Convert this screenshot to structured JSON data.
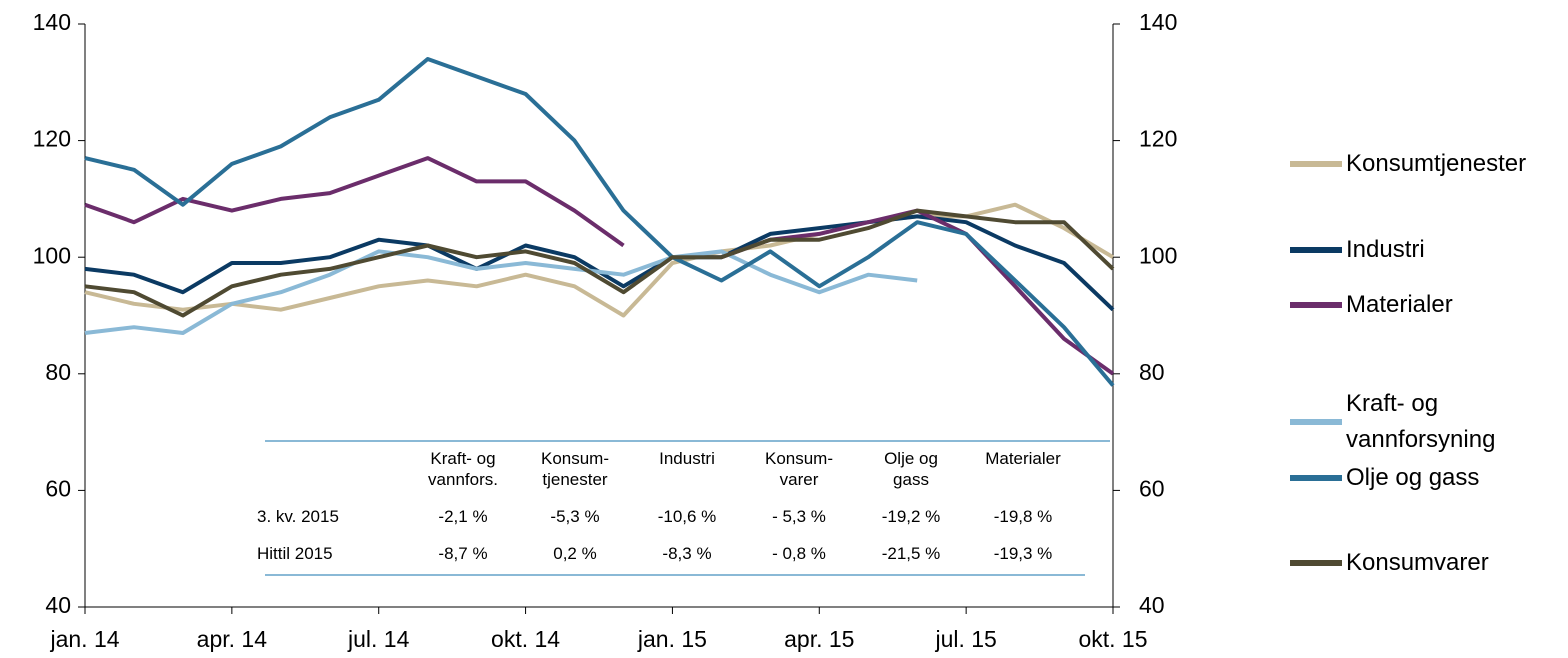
{
  "chart_data": {
    "type": "line",
    "x": [
      0,
      1,
      2,
      3,
      4,
      5,
      6,
      7,
      8,
      9,
      10,
      11,
      12,
      13,
      14,
      15,
      16,
      17,
      18,
      19,
      20,
      21
    ],
    "xlim": [
      0,
      21
    ],
    "xticks": [
      {
        "value": 0,
        "label": "jan. 14"
      },
      {
        "value": 3,
        "label": "apr. 14"
      },
      {
        "value": 6,
        "label": "jul. 14"
      },
      {
        "value": 9,
        "label": "okt. 14"
      },
      {
        "value": 12,
        "label": "jan. 15"
      },
      {
        "value": 15,
        "label": "apr. 15"
      },
      {
        "value": 18,
        "label": "jul. 15"
      },
      {
        "value": 21,
        "label": "okt. 15"
      }
    ],
    "ylim": [
      40,
      140
    ],
    "yticks": [
      40,
      60,
      80,
      100,
      120,
      140
    ],
    "y2lim": [
      40,
      140
    ],
    "y2ticks": [
      40,
      60,
      80,
      100,
      120,
      140
    ],
    "series": [
      {
        "name": "Konsumtjenester",
        "color": "#c8b995",
        "values": [
          94,
          92,
          91,
          92,
          91,
          93,
          95,
          96,
          95,
          97,
          95,
          90,
          99,
          101,
          102,
          104,
          106,
          107,
          107,
          109,
          105,
          100
        ]
      },
      {
        "name": "Industri",
        "color": "#0b3a63",
        "values": [
          98,
          97,
          94,
          99,
          99,
          100,
          103,
          102,
          98,
          102,
          100,
          95,
          100,
          100,
          104,
          105,
          106,
          107,
          106,
          102,
          99,
          91
        ]
      },
      {
        "name": "Materialer",
        "color": "#6b2d6b",
        "values": [
          109,
          106,
          110,
          108,
          110,
          111,
          114,
          117,
          113,
          113,
          108,
          102,
          null,
          100,
          103,
          104,
          106,
          108,
          104,
          95,
          86,
          80
        ]
      },
      {
        "name": "Kraft- og vannforsyning",
        "color": "#8ab9d6",
        "values": [
          87,
          88,
          87,
          92,
          94,
          97,
          101,
          100,
          98,
          99,
          98,
          97,
          100,
          101,
          97,
          94,
          97,
          96,
          null,
          null,
          null,
          null
        ]
      },
      {
        "name": "Olje og gass",
        "color": "#2a6f96",
        "values": [
          117,
          115,
          109,
          116,
          119,
          124,
          127,
          134,
          131,
          128,
          120,
          108,
          100,
          96,
          101,
          95,
          100,
          106,
          104,
          96,
          88,
          78
        ]
      },
      {
        "name": "Konsumvarer",
        "color": "#4f4a32",
        "values": [
          95,
          94,
          90,
          95,
          97,
          98,
          100,
          102,
          100,
          101,
          99,
          94,
          100,
          100,
          103,
          103,
          105,
          108,
          107,
          106,
          106,
          98
        ]
      }
    ],
    "table": {
      "columns": [
        "Kraft- og vannfors.",
        "Konsum-tjenester",
        "Industri",
        "Konsum-varer",
        "Olje og gass",
        "Materialer"
      ],
      "rows": [
        {
          "label": "3. kv. 2015",
          "values": [
            "-2,1 %",
            "-5,3 %",
            "-10,6 %",
            "- 5,3 %",
            "-19,2 %",
            "-19,8 %"
          ]
        },
        {
          "label": "Hittil 2015",
          "values": [
            "-8,7 %",
            "0,2 %",
            "-8,3 %",
            "- 0,8 %",
            "-21,5 %",
            "-19,3 %"
          ]
        }
      ],
      "color": "#8ab9d6"
    }
  }
}
